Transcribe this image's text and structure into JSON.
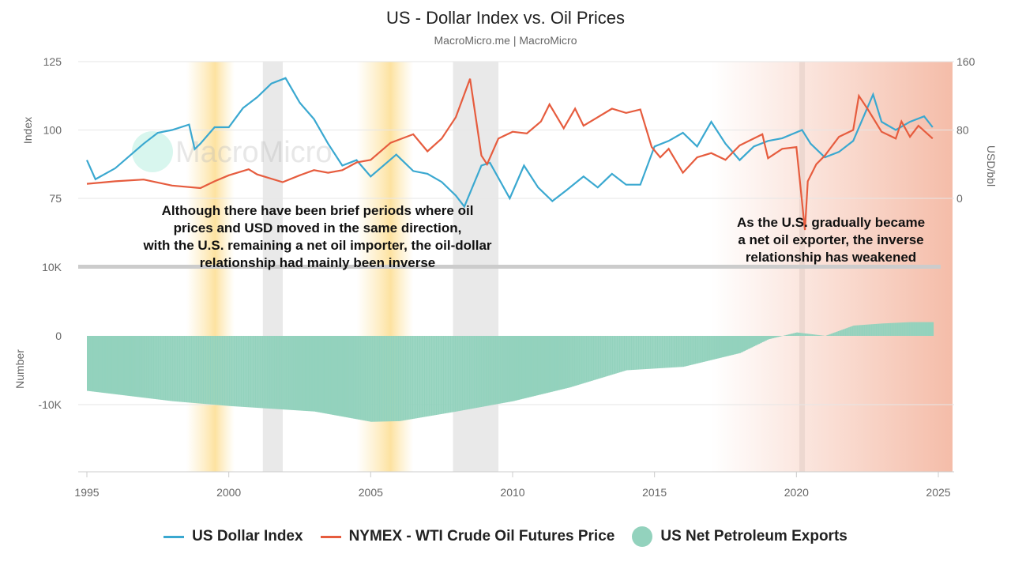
{
  "chart_data": {
    "type": "line",
    "title": "US - Dollar Index vs. Oil Prices",
    "subtitle": "MacroMicro.me | MacroMicro",
    "watermark": "MacroMicro",
    "x_ticks": [
      "1995",
      "2000",
      "2005",
      "2010",
      "2015",
      "2020",
      "2025"
    ],
    "xlim": [
      1995,
      2025.5
    ],
    "top_panel": {
      "left_axis": {
        "label": "Index",
        "ticks": [
          "75",
          "100",
          "125"
        ],
        "range": [
          75,
          125
        ]
      },
      "right_axis": {
        "label": "USD/bbl",
        "ticks": [
          "0",
          "80",
          "160"
        ],
        "range": [
          0,
          160
        ]
      }
    },
    "bottom_panel": {
      "left_axis": {
        "label": "Number",
        "ticks": [
          "10K",
          "0",
          "-10K"
        ],
        "range": [
          -20000,
          10000
        ]
      }
    },
    "series": [
      {
        "name": "US Dollar Index",
        "axis": "left",
        "color": "#3aa8d0",
        "x": [
          1995,
          1995.3,
          1996,
          1997,
          1997.5,
          1998,
          1998.6,
          1998.8,
          1999,
          1999.5,
          2000,
          2000.5,
          2001,
          2001.5,
          2002,
          2002.5,
          2003,
          2003.5,
          2004,
          2004.5,
          2005,
          2005.9,
          2006.5,
          2007,
          2007.5,
          2008,
          2008.3,
          2008.9,
          2009.2,
          2009.9,
          2010.4,
          2010.9,
          2011.4,
          2011.9,
          2012.5,
          2013,
          2013.5,
          2014,
          2014.5,
          2015,
          2015.5,
          2016,
          2016.5,
          2017,
          2017.5,
          2018,
          2018.5,
          2019,
          2019.5,
          2020.2,
          2020.5,
          2021,
          2021.5,
          2022,
          2022.7,
          2023,
          2023.5,
          2024,
          2024.5,
          2024.8
        ],
        "y": [
          89,
          82,
          86,
          95,
          99,
          100,
          102,
          93,
          95,
          101,
          101,
          108,
          112,
          117,
          119,
          110,
          104,
          95,
          87,
          89,
          83,
          91,
          85,
          84,
          81,
          76,
          72,
          87,
          88,
          75,
          87,
          79,
          74,
          78,
          83,
          79,
          84,
          80,
          80,
          94,
          96,
          99,
          94,
          103,
          95,
          89,
          94,
          96,
          97,
          100,
          95,
          90,
          92,
          96,
          113,
          103,
          100,
          103,
          105,
          101
        ]
      },
      {
        "name": "NYMEX - WTI Crude Oil Futures Price",
        "axis": "right",
        "color": "#e65c3e",
        "x": [
          1995,
          1996,
          1997,
          1998,
          1999,
          1999.5,
          2000,
          2000.7,
          2001,
          2001.9,
          2002.5,
          2003,
          2003.5,
          2004,
          2004.5,
          2005,
          2005.7,
          2006.5,
          2007,
          2007.5,
          2008,
          2008.5,
          2008.9,
          2009.1,
          2009.5,
          2010,
          2010.5,
          2011,
          2011.3,
          2011.8,
          2012.2,
          2012.5,
          2013,
          2013.5,
          2014,
          2014.5,
          2014.9,
          2015.2,
          2015.5,
          2016,
          2016.5,
          2017,
          2017.5,
          2018,
          2018.8,
          2019,
          2019.5,
          2020,
          2020.3,
          2020.4,
          2020.7,
          2021,
          2021.5,
          2022,
          2022.2,
          2022.5,
          2023,
          2023.5,
          2023.7,
          2024,
          2024.3,
          2024.8
        ],
        "y": [
          17,
          20,
          22,
          15,
          12,
          20,
          27,
          34,
          28,
          19,
          27,
          33,
          30,
          33,
          42,
          45,
          65,
          75,
          55,
          70,
          95,
          140,
          50,
          40,
          70,
          78,
          76,
          90,
          110,
          82,
          105,
          85,
          95,
          105,
          100,
          104,
          60,
          48,
          58,
          30,
          48,
          53,
          45,
          62,
          75,
          47,
          58,
          60,
          -37,
          20,
          40,
          50,
          72,
          80,
          120,
          105,
          78,
          70,
          90,
          72,
          85,
          70
        ]
      },
      {
        "name": "US Net Petroleum Exports",
        "axis": "bottom",
        "type": "bar",
        "color": "#93d2bd",
        "x": [
          1995,
          1998,
          2000,
          2003,
          2005,
          2006,
          2008,
          2010,
          2012,
          2014,
          2016,
          2017,
          2018,
          2019,
          2020,
          2021,
          2022,
          2023,
          2024,
          2024.8
        ],
        "y": [
          -8000,
          -9500,
          -10200,
          -11000,
          -12500,
          -12400,
          -11000,
          -9500,
          -7500,
          -5000,
          -4500,
          -3500,
          -2500,
          -500,
          500,
          0,
          1500,
          1800,
          2000,
          2000
        ]
      }
    ],
    "shaded_periods": [
      {
        "from": 1998.5,
        "to": 2000.2,
        "color": "#fde9b5"
      },
      {
        "from": 2004.5,
        "to": 2006.5,
        "color": "#fde9b5"
      },
      {
        "from": 2001.2,
        "to": 2001.9,
        "color": "#e9e9e9"
      },
      {
        "from": 2007.9,
        "to": 2009.5,
        "color": "#e9e9e9"
      },
      {
        "from": 2020.1,
        "to": 2020.3,
        "color": "#e9e9e9"
      },
      {
        "from": 2017,
        "to": 2025.5,
        "color": "#f4b9a4"
      }
    ],
    "annotations": [
      {
        "lines": [
          "Although there have been brief periods where oil",
          "prices and USD moved in the same direction,",
          "with the U.S. remaining a net oil importer, the oil-dollar",
          "relationship had mainly been inverse"
        ]
      },
      {
        "lines": [
          "As the U.S. gradually became",
          "a net oil exporter, the inverse",
          "relationship has weakened"
        ]
      }
    ],
    "legend": {
      "position": "bottom"
    }
  }
}
